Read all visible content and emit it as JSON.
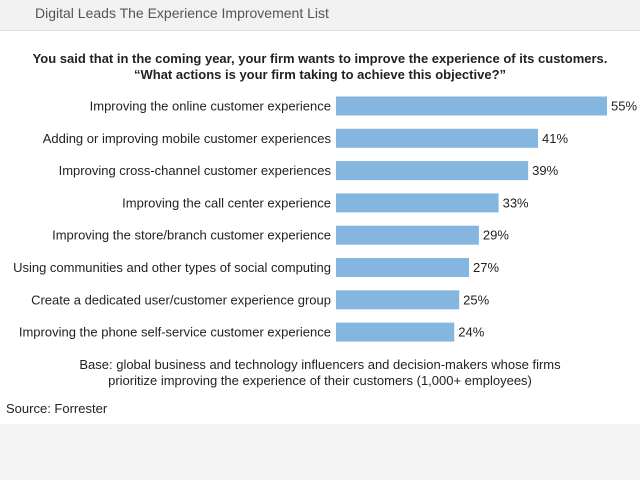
{
  "header": {
    "title": "Digital Leads The Experience Improvement List"
  },
  "chart_data": {
    "type": "bar",
    "orientation": "horizontal",
    "title_lines": [
      "You said that in the coming year, your firm wants to improve the experience of its customers.",
      "“What actions is your firm taking to achieve this objective?”"
    ],
    "categories": [
      "Improving the online customer experience",
      "Adding or improving mobile customer experiences",
      "Improving cross-channel customer experiences",
      "Improving the call center experience",
      "Improving the store/branch customer experience",
      "Using communities and other types of social computing",
      "Create a dedicated user/customer experience group",
      "Improving the phone self-service customer experience"
    ],
    "values": [
      55,
      41,
      39,
      33,
      29,
      27,
      25,
      24
    ],
    "value_labels": [
      "55%",
      "41%",
      "39%",
      "33%",
      "29%",
      "27%",
      "25%",
      "24%"
    ],
    "unit": "%",
    "xlim": [
      0,
      55
    ],
    "grid": false,
    "bar_color": "#84b6e0"
  },
  "base_note_lines": [
    "Base: global business and technology influencers and decision-makers whose firms",
    "prioritize improving the experience of their customers (1,000+ employees)"
  ],
  "source": "Source: Forrester"
}
